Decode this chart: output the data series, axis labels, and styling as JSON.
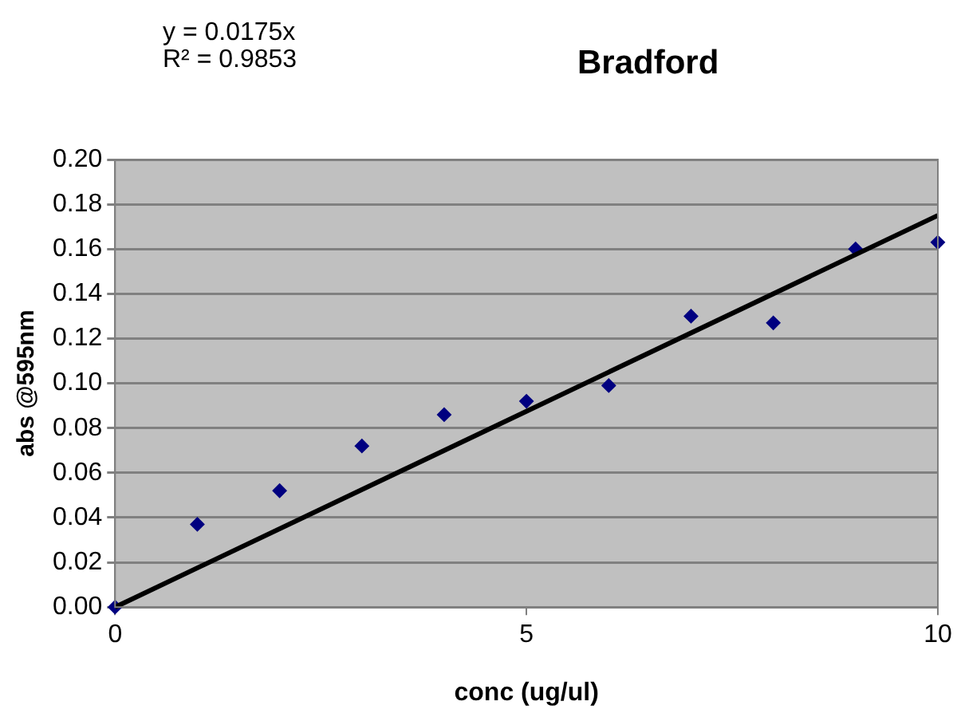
{
  "chart_data": {
    "type": "scatter",
    "title": "Bradford",
    "xlabel": "conc (ug/ul)",
    "ylabel": "abs @595nm",
    "annotations": [
      "y = 0.0175x",
      "R² = 0.9853"
    ],
    "x": [
      0,
      1,
      2,
      3,
      4,
      5,
      6,
      7,
      8,
      9,
      10
    ],
    "series": [
      {
        "color": "#000080",
        "marker": "diamond",
        "values": [
          0,
          0.037,
          0.052,
          0.072,
          0.086,
          0.092,
          0.099,
          0.13,
          0.127,
          0.16,
          0.163
        ]
      },
      {
        "type": "line",
        "color": "#000000",
        "marker": "none",
        "x": [
          0,
          10
        ],
        "values": [
          0,
          0.175
        ]
      }
    ],
    "xlim": [
      0,
      10
    ],
    "xticks": [
      0,
      5,
      10
    ],
    "ylim": [
      0,
      0.2
    ],
    "yticks": [
      {
        "value": 0,
        "label": "0.00"
      },
      {
        "value": 0.02,
        "label": "0.02"
      },
      {
        "value": 0.04,
        "label": "0.04"
      },
      {
        "value": 0.06,
        "label": "0.06"
      },
      {
        "value": 0.08,
        "label": "0.08"
      },
      {
        "value": 0.1,
        "label": "0.10"
      },
      {
        "value": 0.12,
        "label": "0.12"
      },
      {
        "value": 0.14,
        "label": "0.14"
      },
      {
        "value": 0.16,
        "label": "0.16"
      },
      {
        "value": 0.18,
        "label": "0.18"
      },
      {
        "value": 0.2,
        "label": "0.20"
      }
    ],
    "grid": "y",
    "legend": false
  }
}
